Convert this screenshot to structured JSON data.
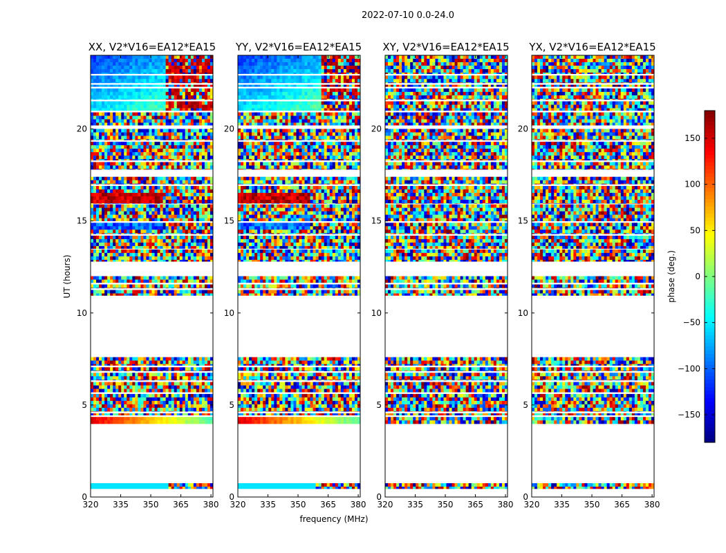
{
  "chart_data": {
    "type": "heatmap",
    "title": "2022-07-10 0.0-24.0",
    "xlabel": "frequency (MHz)",
    "ylabel": "UT (hours)",
    "xlim": [
      320,
      381
    ],
    "ylim": [
      0,
      24
    ],
    "xticks": [
      320,
      335,
      350,
      365,
      380
    ],
    "yticks": [
      0,
      5,
      10,
      15,
      20
    ],
    "colorbar": {
      "label": "phase (deg.)",
      "range": [
        -180,
        180
      ],
      "ticks": [
        150,
        100,
        50,
        0,
        -50,
        -100,
        -150
      ],
      "tick_labels": [
        "150",
        "100",
        "50",
        "0",
        "−50",
        "−100",
        "−150"
      ],
      "colormap": "jet",
      "colors": [
        "#00007f",
        "#0000ff",
        "#007fff",
        "#00ffff",
        "#7fff7f",
        "#ffff00",
        "#ff7f00",
        "#ff0000",
        "#7f0000"
      ]
    },
    "data_bands_ut": [
      [
        0.45,
        0.75
      ],
      [
        3.98,
        4.35
      ],
      [
        4.45,
        4.55
      ],
      [
        4.65,
        5.6
      ],
      [
        5.7,
        6.25
      ],
      [
        6.35,
        6.75
      ],
      [
        6.85,
        7.05
      ],
      [
        7.15,
        7.6
      ],
      [
        10.95,
        11.25
      ],
      [
        11.35,
        11.55
      ],
      [
        11.65,
        12.0
      ],
      [
        12.8,
        13.45
      ],
      [
        13.5,
        14.2
      ],
      [
        14.3,
        14.9
      ],
      [
        15.0,
        15.9
      ],
      [
        15.95,
        16.9
      ],
      [
        17.0,
        17.4
      ],
      [
        17.8,
        18.2
      ],
      [
        18.3,
        19.3
      ],
      [
        19.4,
        20.0
      ],
      [
        20.2,
        20.9
      ],
      [
        21.0,
        21.5
      ],
      [
        21.6,
        22.2
      ],
      [
        22.3,
        22.4
      ],
      [
        22.5,
        22.9
      ],
      [
        23.0,
        24.0
      ]
    ],
    "panels": [
      {
        "title": "XX, V2*V16=EA12*EA15",
        "pol": "XX"
      },
      {
        "title": "YY, V2*V16=EA12*EA15",
        "pol": "YY"
      },
      {
        "title": "XY, V2*V16=EA12*EA15",
        "pol": "XY"
      },
      {
        "title": "YX, V2*V16=EA12*EA15",
        "pol": "YX"
      }
    ]
  }
}
